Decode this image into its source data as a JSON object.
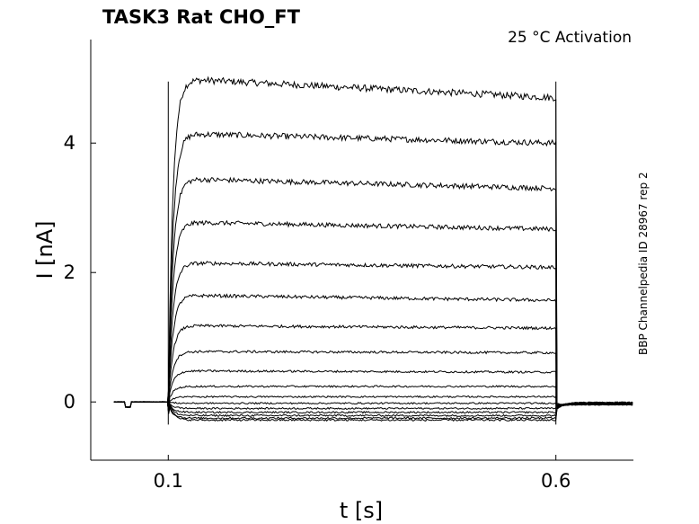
{
  "chart_data": {
    "type": "line",
    "title": "TASK3  Rat  CHO_FT",
    "subtitle": "25 °C  Activation",
    "side_note": "BBP Channelpedia ID 28967 rep 2",
    "xlabel": "t [s]",
    "ylabel": "I [nA]",
    "xlim": [
      0.0,
      0.7
    ],
    "ylim": [
      -0.9,
      5.6
    ],
    "x_ticks": [
      0.1,
      0.6
    ],
    "x_tick_labels": [
      "0.1",
      "0.6"
    ],
    "y_ticks": [
      0,
      2,
      4
    ],
    "y_tick_labels": [
      "0",
      "2",
      "4"
    ],
    "grid": false,
    "legend": "none",
    "line_color": "#000000",
    "stimulus": {
      "onset": 0.1,
      "offset": 0.6
    },
    "series": [
      {
        "peak": 5.0,
        "end": 4.7,
        "offset_tail": -0.04
      },
      {
        "peak": 4.15,
        "end": 4.0,
        "offset_tail": -0.04
      },
      {
        "peak": 3.45,
        "end": 3.3,
        "offset_tail": -0.04
      },
      {
        "peak": 2.78,
        "end": 2.67,
        "offset_tail": -0.04
      },
      {
        "peak": 2.15,
        "end": 2.08,
        "offset_tail": -0.04
      },
      {
        "peak": 1.65,
        "end": 1.57,
        "offset_tail": -0.03
      },
      {
        "peak": 1.18,
        "end": 1.14,
        "offset_tail": -0.03
      },
      {
        "peak": 0.78,
        "end": 0.76,
        "offset_tail": -0.03
      },
      {
        "peak": 0.48,
        "end": 0.46,
        "offset_tail": -0.02
      },
      {
        "peak": 0.24,
        "end": 0.24,
        "offset_tail": -0.02
      },
      {
        "peak": 0.08,
        "end": 0.08,
        "offset_tail": -0.02
      },
      {
        "peak": -0.02,
        "end": -0.02,
        "offset_tail": -0.02
      },
      {
        "peak": -0.1,
        "end": -0.1,
        "offset_tail": -0.02
      },
      {
        "peak": -0.16,
        "end": -0.16,
        "offset_tail": -0.01
      },
      {
        "peak": -0.21,
        "end": -0.21,
        "offset_tail": -0.01
      },
      {
        "peak": -0.25,
        "end": -0.25,
        "offset_tail": -0.01
      },
      {
        "peak": -0.28,
        "end": -0.28,
        "offset_tail": -0.01
      }
    ]
  }
}
